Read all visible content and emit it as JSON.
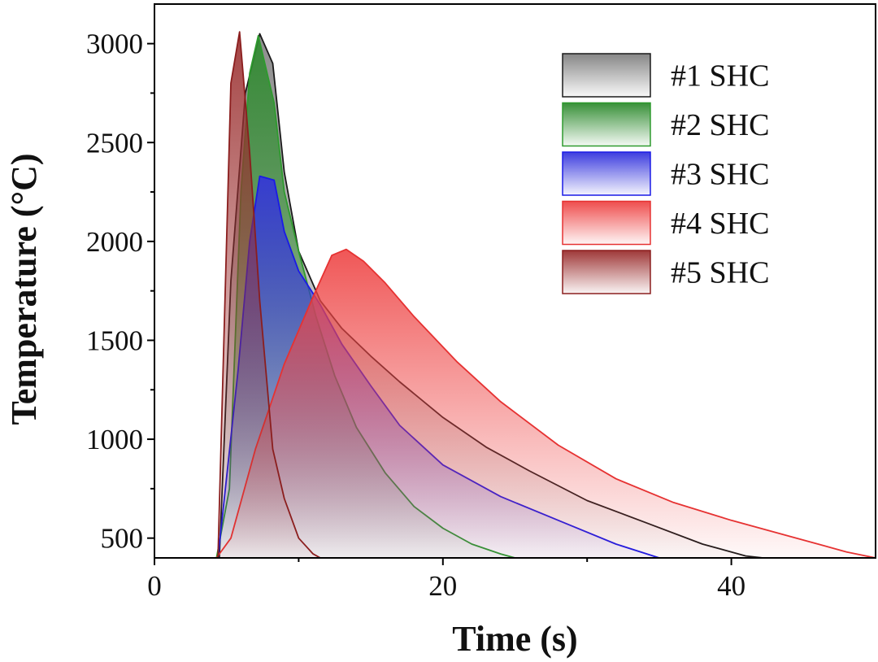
{
  "chart_data": {
    "type": "area",
    "title": "",
    "xlabel": "Time (s)",
    "ylabel": "Temperature (°C)",
    "xlim": [
      0,
      50
    ],
    "ylim": [
      400,
      3200
    ],
    "xticks": [
      0,
      20,
      40
    ],
    "xtick_labels": [
      "0",
      "20",
      "40"
    ],
    "yticks": [
      500,
      1000,
      1500,
      2000,
      2500,
      3000
    ],
    "ytick_labels": [
      "500",
      "1000",
      "1500",
      "2000",
      "2500",
      "3000"
    ],
    "grid": false,
    "legend_position": "top-right",
    "series": [
      {
        "name": "#1 SHC",
        "color": "#1a1a1a",
        "fill": "#808080",
        "points": [
          [
            4.5,
            400
          ],
          [
            5.3,
            1800
          ],
          [
            6.3,
            2750
          ],
          [
            7.3,
            3050
          ],
          [
            8.2,
            2900
          ],
          [
            9,
            2350
          ],
          [
            10,
            1950
          ],
          [
            11.5,
            1700
          ],
          [
            13,
            1560
          ],
          [
            15,
            1420
          ],
          [
            17,
            1290
          ],
          [
            20,
            1110
          ],
          [
            23,
            960
          ],
          [
            26,
            840
          ],
          [
            30,
            690
          ],
          [
            34,
            580
          ],
          [
            38,
            470
          ],
          [
            41,
            410
          ],
          [
            42.2,
            400
          ]
        ]
      },
      {
        "name": "#2 SHC",
        "color": "#2e9a2e",
        "fill": "#2e8b2e",
        "points": [
          [
            4.3,
            400
          ],
          [
            5.2,
            750
          ],
          [
            6,
            2250
          ],
          [
            6.6,
            2850
          ],
          [
            7.2,
            3040
          ],
          [
            8.3,
            2700
          ],
          [
            9,
            2250
          ],
          [
            10,
            1950
          ],
          [
            11.2,
            1620
          ],
          [
            12.5,
            1320
          ],
          [
            14,
            1060
          ],
          [
            16,
            830
          ],
          [
            18,
            660
          ],
          [
            20,
            550
          ],
          [
            22,
            470
          ],
          [
            24,
            420
          ],
          [
            25,
            400
          ]
        ]
      },
      {
        "name": "#3 SHC",
        "color": "#1a1ae6",
        "fill": "#3333dd",
        "points": [
          [
            4.4,
            400
          ],
          [
            5.8,
            1350
          ],
          [
            6.6,
            2000
          ],
          [
            7.3,
            2330
          ],
          [
            8.3,
            2310
          ],
          [
            9,
            2050
          ],
          [
            10,
            1850
          ],
          [
            11.5,
            1680
          ],
          [
            13,
            1480
          ],
          [
            15,
            1270
          ],
          [
            17,
            1070
          ],
          [
            20,
            870
          ],
          [
            24,
            710
          ],
          [
            28,
            590
          ],
          [
            32,
            470
          ],
          [
            35,
            400
          ]
        ]
      },
      {
        "name": "#4 SHC",
        "color": "#e63232",
        "fill": "#ee4444",
        "points": [
          [
            4.3,
            400
          ],
          [
            5.3,
            500
          ],
          [
            7,
            950
          ],
          [
            9,
            1380
          ],
          [
            11,
            1720
          ],
          [
            12.3,
            1930
          ],
          [
            13.3,
            1960
          ],
          [
            14.5,
            1900
          ],
          [
            16,
            1790
          ],
          [
            18,
            1620
          ],
          [
            21,
            1390
          ],
          [
            24,
            1190
          ],
          [
            28,
            970
          ],
          [
            32,
            800
          ],
          [
            36,
            680
          ],
          [
            40,
            590
          ],
          [
            44,
            510
          ],
          [
            48,
            430
          ],
          [
            50,
            400
          ]
        ]
      },
      {
        "name": "#5 SHC",
        "color": "#8b1e1e",
        "fill": "#9a2e2e",
        "points": [
          [
            4.4,
            400
          ],
          [
            5.3,
            2800
          ],
          [
            5.9,
            3060
          ],
          [
            6.6,
            2450
          ],
          [
            7.3,
            1700
          ],
          [
            8.2,
            950
          ],
          [
            9,
            700
          ],
          [
            10,
            500
          ],
          [
            11,
            420
          ],
          [
            11.5,
            400
          ]
        ]
      }
    ]
  }
}
